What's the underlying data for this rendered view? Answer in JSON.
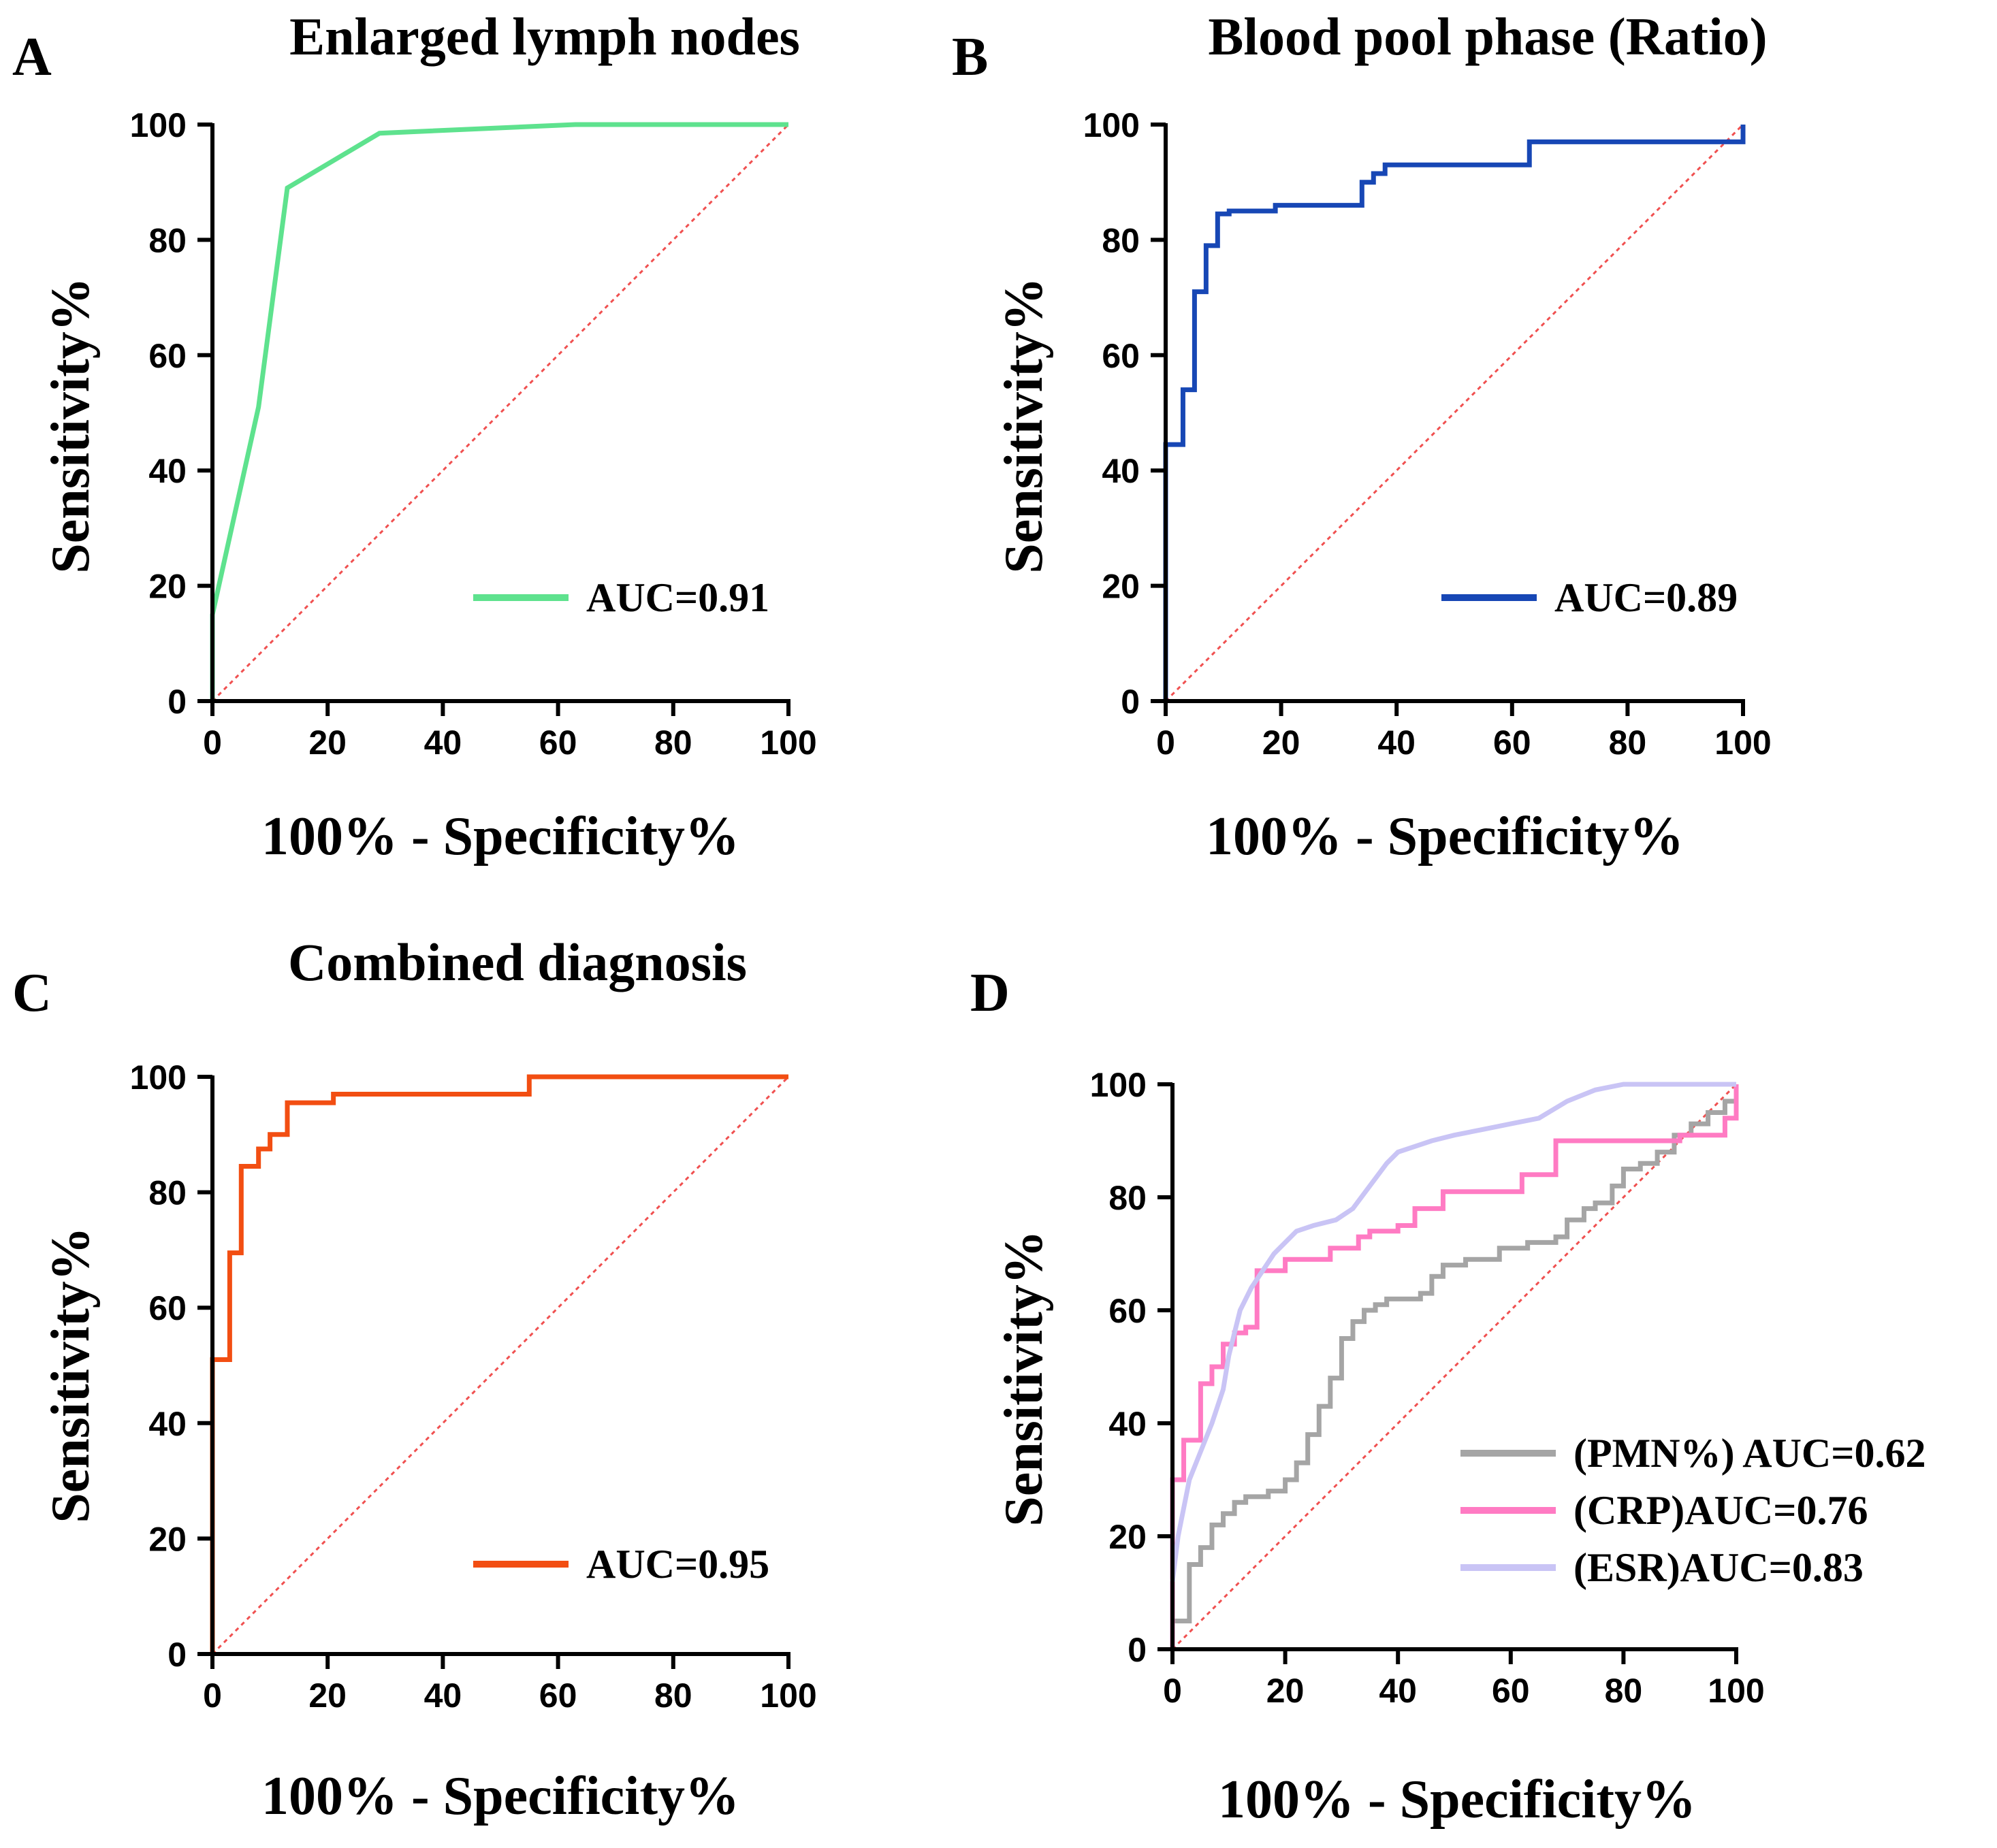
{
  "chart_data": [
    {
      "panel": "A",
      "type": "line",
      "title": "Enlarged lymph nodes",
      "xlabel": "100% - Specificity%",
      "ylabel": "Sensitivity%",
      "xlim": [
        0,
        100
      ],
      "ylim": [
        0,
        100
      ],
      "xticks": [
        "0",
        "20",
        "40",
        "60",
        "80",
        "100"
      ],
      "yticks": [
        "0",
        "20",
        "40",
        "60",
        "80",
        "100"
      ],
      "reference_line": {
        "color": "#f05050",
        "x": [
          0,
          100
        ],
        "y": [
          0,
          100
        ]
      },
      "series": [
        {
          "name": "AUC=0.91",
          "color": "#5ee28e",
          "step": false,
          "x": [
            0,
            0,
            8,
            13,
            29,
            63,
            100
          ],
          "y": [
            0,
            15,
            51,
            89,
            98.5,
            100,
            100
          ]
        }
      ]
    },
    {
      "panel": "B",
      "type": "line",
      "title": "Blood pool phase (Ratio)",
      "xlabel": "100% - Specificity%",
      "ylabel": "Sensitivity%",
      "xlim": [
        0,
        100
      ],
      "ylim": [
        0,
        100
      ],
      "xticks": [
        "0",
        "20",
        "40",
        "60",
        "80",
        "100"
      ],
      "yticks": [
        "0",
        "20",
        "40",
        "60",
        "80",
        "100"
      ],
      "reference_line": {
        "color": "#f05050",
        "x": [
          0,
          100
        ],
        "y": [
          0,
          100
        ]
      },
      "series": [
        {
          "name": "AUC=0.89",
          "color": "#1747b5",
          "step": true,
          "x": [
            0,
            0,
            3,
            5,
            7,
            9,
            11,
            19,
            34,
            36,
            38,
            40,
            63,
            100,
            100
          ],
          "y": [
            0,
            44.5,
            54,
            71,
            79,
            84.5,
            85,
            86,
            90,
            91.5,
            93,
            93,
            97,
            97,
            100
          ]
        }
      ]
    },
    {
      "panel": "C",
      "type": "line",
      "title": "Combined diagnosis",
      "xlabel": "100% - Specificity%",
      "ylabel": "Sensitivity%",
      "xlim": [
        0,
        100
      ],
      "ylim": [
        0,
        100
      ],
      "xticks": [
        "0",
        "20",
        "40",
        "60",
        "80",
        "100"
      ],
      "yticks": [
        "0",
        "20",
        "40",
        "60",
        "80",
        "100"
      ],
      "reference_line": {
        "color": "#f05050",
        "x": [
          0,
          100
        ],
        "y": [
          0,
          100
        ]
      },
      "series": [
        {
          "name": "AUC=0.95",
          "color": "#f24e12",
          "step": true,
          "x": [
            0,
            0,
            3,
            5,
            8,
            10,
            13,
            21,
            55,
            100
          ],
          "y": [
            0,
            51,
            69.5,
            84.5,
            87.5,
            90,
            95.5,
            97,
            100,
            100
          ]
        }
      ]
    },
    {
      "panel": "D",
      "type": "line",
      "title": "",
      "xlabel": "100% - Specificity%",
      "ylabel": "Sensitivity%",
      "xlim": [
        0,
        100
      ],
      "ylim": [
        0,
        100
      ],
      "xticks": [
        "0",
        "20",
        "40",
        "60",
        "80",
        "100"
      ],
      "yticks": [
        "0",
        "20",
        "40",
        "60",
        "80",
        "100"
      ],
      "reference_line": {
        "color": "#f05050",
        "x": [
          0,
          100
        ],
        "y": [
          0,
          100
        ]
      },
      "series": [
        {
          "name": "(PMN%) AUC=0.62",
          "color": "#a5a5a5",
          "step": true,
          "x": [
            0,
            0,
            3,
            5,
            7,
            9,
            11,
            13,
            17,
            20,
            22,
            24,
            26,
            28,
            30,
            32,
            34,
            36,
            38,
            40,
            44,
            46,
            48,
            52,
            58,
            63,
            68,
            70,
            73,
            75,
            78,
            80,
            83,
            86,
            89,
            92,
            95,
            98,
            100
          ],
          "y": [
            0,
            5,
            15,
            18,
            22,
            24,
            26,
            27,
            28,
            30,
            33,
            38,
            43,
            48,
            55,
            58,
            60,
            61,
            62,
            62,
            63,
            66,
            68,
            69,
            71,
            72,
            73,
            76,
            78,
            79,
            82,
            85,
            86,
            88,
            91,
            93,
            95,
            97,
            100
          ]
        },
        {
          "name": "(CRP)AUC=0.76",
          "color": "#ff7bc3",
          "step": true,
          "x": [
            0,
            0,
            2,
            5,
            7,
            9,
            11,
            13,
            15,
            20,
            25,
            28,
            33,
            35,
            40,
            43,
            48,
            62,
            68,
            90,
            98,
            100
          ],
          "y": [
            0,
            30,
            37,
            47,
            50,
            54,
            56,
            57,
            67,
            69,
            69,
            71,
            73,
            74,
            75,
            78,
            81,
            84,
            90,
            91,
            94,
            100
          ]
        },
        {
          "name": "(ESR)AUC=0.83",
          "color": "#c9c4f5",
          "step": false,
          "x": [
            0,
            1,
            3,
            5,
            7,
            9,
            10,
            12,
            14,
            16,
            18,
            20,
            22,
            25,
            29,
            32,
            35,
            38,
            40,
            43,
            46,
            50,
            55,
            60,
            65,
            70,
            75,
            80,
            85,
            90,
            95,
            100
          ],
          "y": [
            12,
            20,
            30,
            35,
            40,
            46,
            52,
            60,
            64,
            67,
            70,
            72,
            74,
            75,
            76,
            78,
            82,
            86,
            88,
            89,
            90,
            91,
            92,
            93,
            94,
            97,
            99,
            100,
            100,
            100,
            100,
            100
          ]
        }
      ]
    }
  ]
}
